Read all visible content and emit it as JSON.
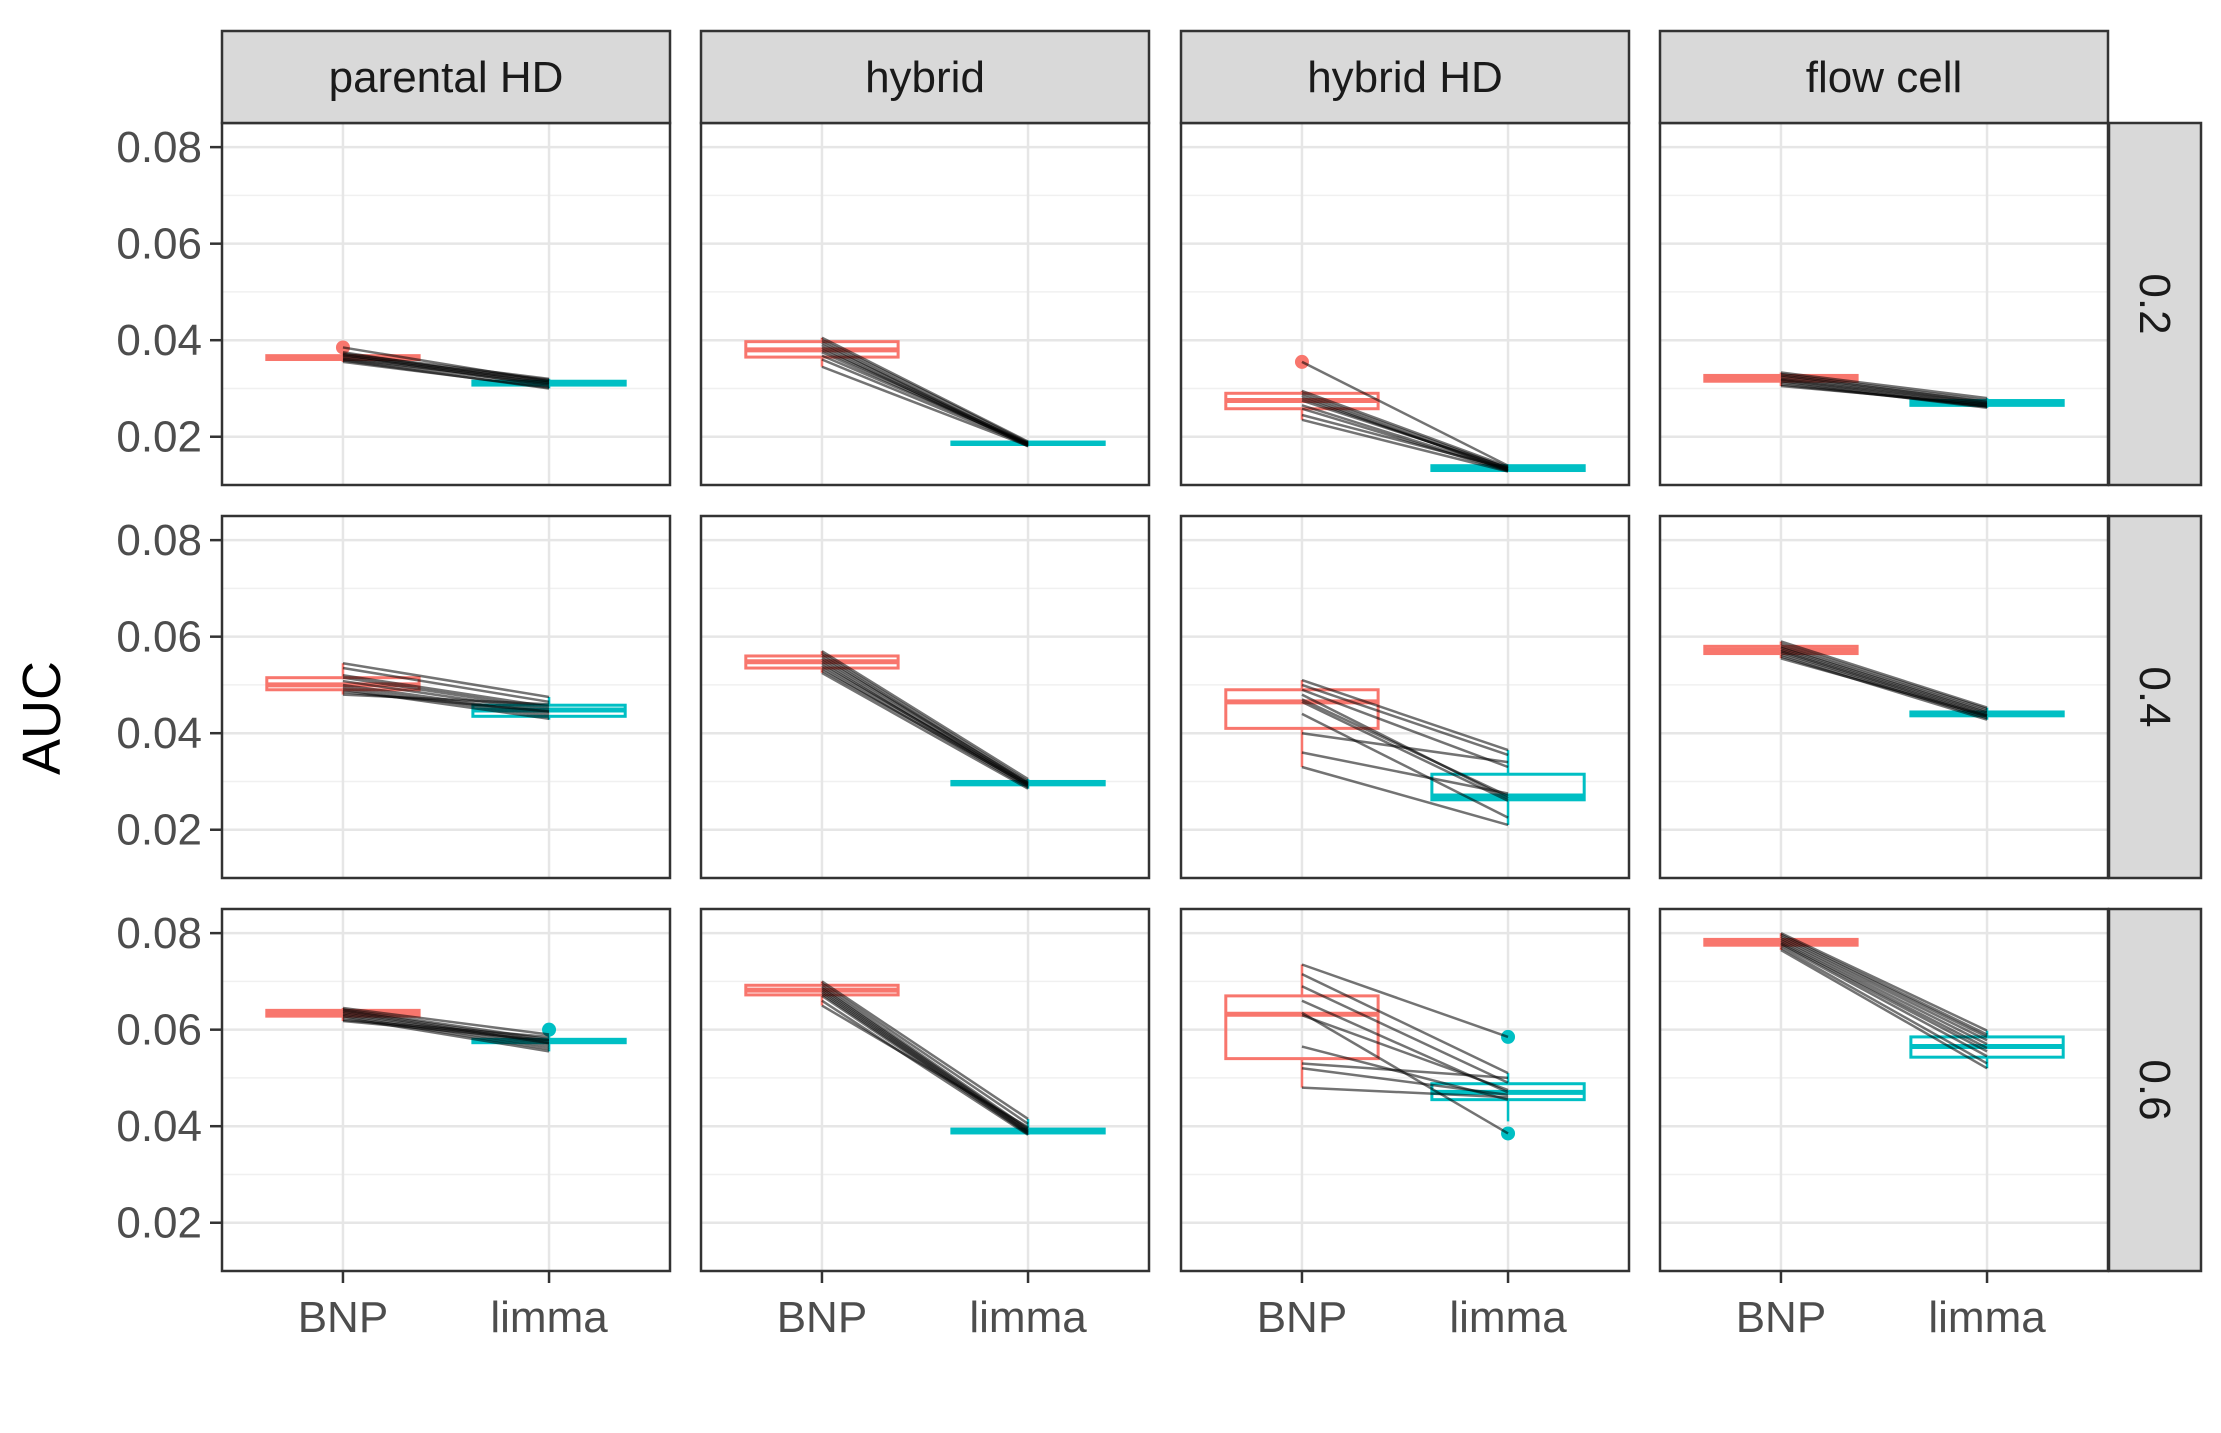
{
  "chart_data": {
    "type": "boxplot",
    "title": "",
    "xlabel": "",
    "ylabel": "AUC",
    "ylim": [
      0.01,
      0.085
    ],
    "y_ticks": [
      0.02,
      0.04,
      0.06,
      0.08
    ],
    "y_tick_labels": [
      "0.02",
      "0.04",
      "0.06",
      "0.08"
    ],
    "categories": [
      "BNP",
      "limma"
    ],
    "category_colors": {
      "BNP": "#F8766D",
      "limma": "#00BFC4"
    },
    "paired_line_color": "#000000",
    "facet_columns": [
      "parental HD",
      "hybrid",
      "hybrid HD",
      "flow cell"
    ],
    "facet_rows": [
      "0.2",
      "0.4",
      "0.6"
    ],
    "panels": [
      {
        "col": "parental HD",
        "row": "0.2",
        "BNP": {
          "q1": 0.036,
          "median": 0.0364,
          "q3": 0.0368,
          "lower": 0.0355,
          "upper": 0.0372,
          "outliers": [
            0.0385
          ]
        },
        "limma": {
          "q1": 0.0307,
          "median": 0.0311,
          "q3": 0.0315,
          "lower": 0.03,
          "upper": 0.032,
          "outliers": []
        },
        "pairs": [
          [
            0.0375,
            0.031
          ],
          [
            0.037,
            0.0305
          ],
          [
            0.0365,
            0.0315
          ],
          [
            0.036,
            0.0308
          ],
          [
            0.0355,
            0.0302
          ],
          [
            0.0368,
            0.0318
          ],
          [
            0.0362,
            0.0312
          ],
          [
            0.0358,
            0.03
          ],
          [
            0.0372,
            0.032
          ],
          [
            0.0385,
            0.0315
          ]
        ]
      },
      {
        "col": "hybrid",
        "row": "0.2",
        "BNP": {
          "q1": 0.0365,
          "median": 0.038,
          "q3": 0.0397,
          "lower": 0.0345,
          "upper": 0.0405,
          "outliers": []
        },
        "limma": {
          "q1": 0.0184,
          "median": 0.0186,
          "q3": 0.0189,
          "lower": 0.018,
          "upper": 0.0191,
          "outliers": []
        },
        "pairs": [
          [
            0.0405,
            0.019
          ],
          [
            0.04,
            0.0188
          ],
          [
            0.0395,
            0.0182
          ],
          [
            0.039,
            0.0185
          ],
          [
            0.0385,
            0.018
          ],
          [
            0.038,
            0.0187
          ],
          [
            0.0375,
            0.0184
          ],
          [
            0.0368,
            0.0186
          ],
          [
            0.036,
            0.0183
          ],
          [
            0.0345,
            0.0181
          ]
        ]
      },
      {
        "col": "hybrid HD",
        "row": "0.2",
        "BNP": {
          "q1": 0.0258,
          "median": 0.0275,
          "q3": 0.029,
          "lower": 0.0235,
          "upper": 0.0295,
          "outliers": [
            0.0355
          ]
        },
        "limma": {
          "q1": 0.013,
          "median": 0.0135,
          "q3": 0.014,
          "lower": 0.0128,
          "upper": 0.0142,
          "outliers": []
        },
        "pairs": [
          [
            0.0355,
            0.014
          ],
          [
            0.0295,
            0.0138
          ],
          [
            0.029,
            0.0135
          ],
          [
            0.0285,
            0.013
          ],
          [
            0.028,
            0.0133
          ],
          [
            0.0275,
            0.0136
          ],
          [
            0.0265,
            0.0131
          ],
          [
            0.0258,
            0.0129
          ],
          [
            0.0245,
            0.0134
          ],
          [
            0.0235,
            0.0128
          ]
        ]
      },
      {
        "col": "flow cell",
        "row": "0.2",
        "BNP": {
          "q1": 0.0315,
          "median": 0.032,
          "q3": 0.0327,
          "lower": 0.0305,
          "upper": 0.0333,
          "outliers": []
        },
        "limma": {
          "q1": 0.0265,
          "median": 0.027,
          "q3": 0.0275,
          "lower": 0.026,
          "upper": 0.028,
          "outliers": []
        },
        "pairs": [
          [
            0.0333,
            0.028
          ],
          [
            0.033,
            0.0275
          ],
          [
            0.0327,
            0.0272
          ],
          [
            0.0324,
            0.027
          ],
          [
            0.032,
            0.0268
          ],
          [
            0.0318,
            0.0265
          ],
          [
            0.0315,
            0.0262
          ],
          [
            0.0312,
            0.026
          ],
          [
            0.0308,
            0.0263
          ],
          [
            0.0305,
            0.0267
          ]
        ]
      },
      {
        "col": "parental HD",
        "row": "0.4",
        "BNP": {
          "q1": 0.049,
          "median": 0.05,
          "q3": 0.0515,
          "lower": 0.048,
          "upper": 0.0545,
          "outliers": []
        },
        "limma": {
          "q1": 0.0435,
          "median": 0.0448,
          "q3": 0.0458,
          "lower": 0.0428,
          "upper": 0.0475,
          "outliers": []
        },
        "pairs": [
          [
            0.0545,
            0.0475
          ],
          [
            0.0535,
            0.0465
          ],
          [
            0.052,
            0.0455
          ],
          [
            0.0515,
            0.045
          ],
          [
            0.0508,
            0.0445
          ],
          [
            0.05,
            0.044
          ],
          [
            0.0495,
            0.0435
          ],
          [
            0.049,
            0.043
          ],
          [
            0.0485,
            0.0445
          ],
          [
            0.048,
            0.046
          ]
        ]
      },
      {
        "col": "hybrid",
        "row": "0.4",
        "BNP": {
          "q1": 0.0535,
          "median": 0.0548,
          "q3": 0.056,
          "lower": 0.0525,
          "upper": 0.057,
          "outliers": []
        },
        "limma": {
          "q1": 0.0293,
          "median": 0.0296,
          "q3": 0.03,
          "lower": 0.0285,
          "upper": 0.0305,
          "outliers": []
        },
        "pairs": [
          [
            0.057,
            0.0305
          ],
          [
            0.0565,
            0.03
          ],
          [
            0.056,
            0.0295
          ],
          [
            0.0555,
            0.0298
          ],
          [
            0.055,
            0.0292
          ],
          [
            0.0545,
            0.029
          ],
          [
            0.054,
            0.0296
          ],
          [
            0.0535,
            0.0288
          ],
          [
            0.053,
            0.0293
          ],
          [
            0.0525,
            0.0285
          ]
        ]
      },
      {
        "col": "hybrid HD",
        "row": "0.4",
        "BNP": {
          "q1": 0.041,
          "median": 0.0465,
          "q3": 0.049,
          "lower": 0.033,
          "upper": 0.051,
          "outliers": []
        },
        "limma": {
          "q1": 0.0262,
          "median": 0.027,
          "q3": 0.0315,
          "lower": 0.021,
          "upper": 0.0365,
          "outliers": []
        },
        "pairs": [
          [
            0.051,
            0.0365
          ],
          [
            0.05,
            0.0355
          ],
          [
            0.049,
            0.033
          ],
          [
            0.048,
            0.0265
          ],
          [
            0.047,
            0.027
          ],
          [
            0.0465,
            0.026
          ],
          [
            0.044,
            0.0225
          ],
          [
            0.04,
            0.034
          ],
          [
            0.036,
            0.0275
          ],
          [
            0.033,
            0.021
          ]
        ]
      },
      {
        "col": "flow cell",
        "row": "0.4",
        "BNP": {
          "q1": 0.0565,
          "median": 0.0572,
          "q3": 0.058,
          "lower": 0.0555,
          "upper": 0.059,
          "outliers": []
        },
        "limma": {
          "q1": 0.0436,
          "median": 0.044,
          "q3": 0.0444,
          "lower": 0.0428,
          "upper": 0.0453,
          "outliers": []
        },
        "pairs": [
          [
            0.059,
            0.0453
          ],
          [
            0.0585,
            0.045
          ],
          [
            0.058,
            0.0446
          ],
          [
            0.0577,
            0.0443
          ],
          [
            0.0573,
            0.044
          ],
          [
            0.057,
            0.0437
          ],
          [
            0.0567,
            0.0434
          ],
          [
            0.0563,
            0.0431
          ],
          [
            0.0559,
            0.0428
          ],
          [
            0.0555,
            0.0436
          ]
        ]
      },
      {
        "col": "parental HD",
        "row": "0.6",
        "BNP": {
          "q1": 0.0628,
          "median": 0.0634,
          "q3": 0.064,
          "lower": 0.0618,
          "upper": 0.0645,
          "outliers": []
        },
        "limma": {
          "q1": 0.0573,
          "median": 0.0577,
          "q3": 0.058,
          "lower": 0.0555,
          "upper": 0.059,
          "outliers": [
            0.06
          ]
        },
        "pairs": [
          [
            0.0645,
            0.059
          ],
          [
            0.0642,
            0.058
          ],
          [
            0.064,
            0.0575
          ],
          [
            0.0637,
            0.0572
          ],
          [
            0.0634,
            0.057
          ],
          [
            0.0631,
            0.0565
          ],
          [
            0.0628,
            0.056
          ],
          [
            0.0625,
            0.0555
          ],
          [
            0.062,
            0.0585
          ],
          [
            0.0618,
            0.0578
          ]
        ]
      },
      {
        "col": "hybrid",
        "row": "0.6",
        "BNP": {
          "q1": 0.0672,
          "median": 0.0682,
          "q3": 0.0692,
          "lower": 0.065,
          "upper": 0.07,
          "outliers": []
        },
        "limma": {
          "q1": 0.0386,
          "median": 0.039,
          "q3": 0.0394,
          "lower": 0.0382,
          "upper": 0.0415,
          "outliers": []
        },
        "pairs": [
          [
            0.07,
            0.0415
          ],
          [
            0.0695,
            0.0405
          ],
          [
            0.069,
            0.0395
          ],
          [
            0.0686,
            0.0392
          ],
          [
            0.0682,
            0.039
          ],
          [
            0.0678,
            0.0388
          ],
          [
            0.0674,
            0.0386
          ],
          [
            0.067,
            0.0384
          ],
          [
            0.066,
            0.0382
          ],
          [
            0.065,
            0.0398
          ]
        ]
      },
      {
        "col": "hybrid HD",
        "row": "0.6",
        "BNP": {
          "q1": 0.054,
          "median": 0.0632,
          "q3": 0.067,
          "lower": 0.048,
          "upper": 0.0735,
          "outliers": []
        },
        "limma": {
          "q1": 0.0455,
          "median": 0.047,
          "q3": 0.0488,
          "lower": 0.041,
          "upper": 0.051,
          "outliers": [
            0.0585,
            0.0385
          ]
        },
        "pairs": [
          [
            0.0735,
            0.0585
          ],
          [
            0.0715,
            0.051
          ],
          [
            0.069,
            0.049
          ],
          [
            0.066,
            0.047
          ],
          [
            0.0635,
            0.0385
          ],
          [
            0.063,
            0.0475
          ],
          [
            0.0565,
            0.0455
          ],
          [
            0.053,
            0.05
          ],
          [
            0.052,
            0.0465
          ],
          [
            0.048,
            0.046
          ]
        ]
      },
      {
        "col": "flow cell",
        "row": "0.6",
        "BNP": {
          "q1": 0.0775,
          "median": 0.078,
          "q3": 0.0787,
          "lower": 0.0765,
          "upper": 0.08,
          "outliers": []
        },
        "limma": {
          "q1": 0.0543,
          "median": 0.0565,
          "q3": 0.0585,
          "lower": 0.052,
          "upper": 0.0598,
          "outliers": []
        },
        "pairs": [
          [
            0.08,
            0.0598
          ],
          [
            0.0797,
            0.059
          ],
          [
            0.0793,
            0.0585
          ],
          [
            0.0789,
            0.0578
          ],
          [
            0.0785,
            0.057
          ],
          [
            0.0781,
            0.0562
          ],
          [
            0.0778,
            0.0555
          ],
          [
            0.0775,
            0.0545
          ],
          [
            0.077,
            0.053
          ],
          [
            0.0765,
            0.052
          ]
        ]
      }
    ]
  }
}
